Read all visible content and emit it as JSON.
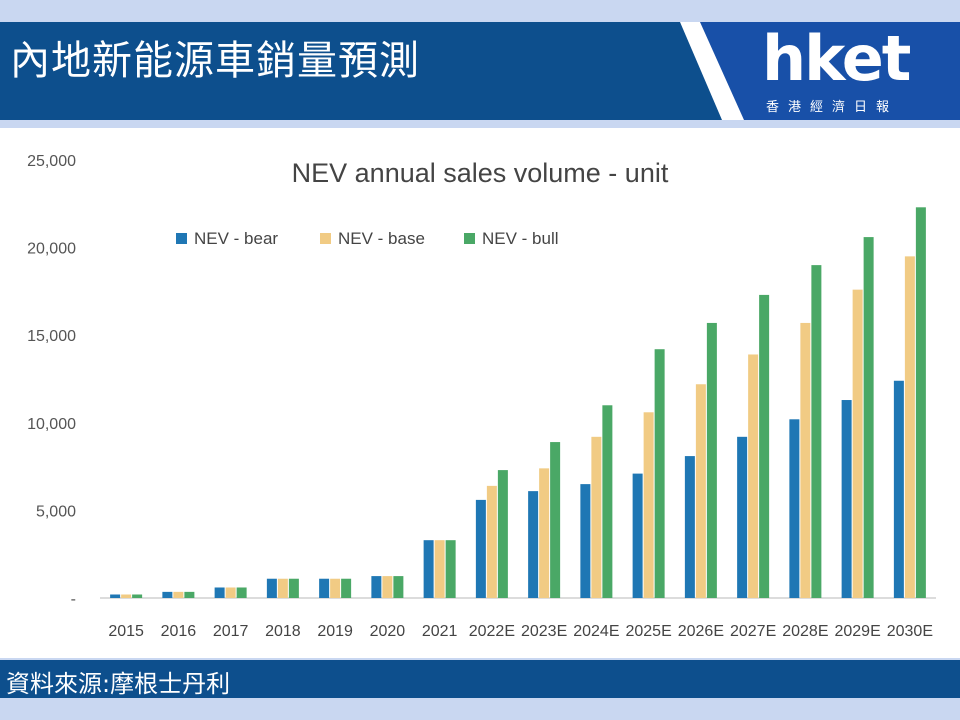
{
  "header": {
    "title": "內地新能源車銷量預測",
    "logo_main": "hket",
    "logo_sub": "香港經濟日報"
  },
  "footer": {
    "source": "資料來源:摩根士丹利"
  },
  "colors": {
    "band": "#0d4f8d",
    "bear": "#1f77b4",
    "base": "#f1cb84",
    "bull": "#4aa866"
  },
  "chart_data": {
    "type": "bar",
    "title": "NEV annual sales volume - unit",
    "legend_position": "top-left",
    "categories": [
      "2015",
      "2016",
      "2017",
      "2018",
      "2019",
      "2020",
      "2021",
      "2022E",
      "2023E",
      "2024E",
      "2025E",
      "2026E",
      "2027E",
      "2028E",
      "2029E",
      "2030E"
    ],
    "ylim": [
      0,
      25000
    ],
    "yticks": [
      0,
      5000,
      10000,
      15000,
      20000,
      25000
    ],
    "ytick_labels": [
      "-",
      "5,000",
      "10,000",
      "15,000",
      "20,000",
      "25,000"
    ],
    "series": [
      {
        "name": "NEV - bear",
        "values": [
          200,
          350,
          600,
          1100,
          1100,
          1250,
          3300,
          5600,
          6100,
          6500,
          7100,
          8100,
          9200,
          10200,
          11300,
          12400
        ]
      },
      {
        "name": "NEV - base",
        "values": [
          200,
          350,
          600,
          1100,
          1100,
          1250,
          3300,
          6400,
          7400,
          9200,
          10600,
          12200,
          13900,
          15700,
          17600,
          19500
        ]
      },
      {
        "name": "NEV - bull",
        "values": [
          200,
          350,
          600,
          1100,
          1100,
          1250,
          3300,
          7300,
          8900,
          11000,
          14200,
          15700,
          17300,
          19000,
          20600,
          22300
        ]
      }
    ]
  }
}
